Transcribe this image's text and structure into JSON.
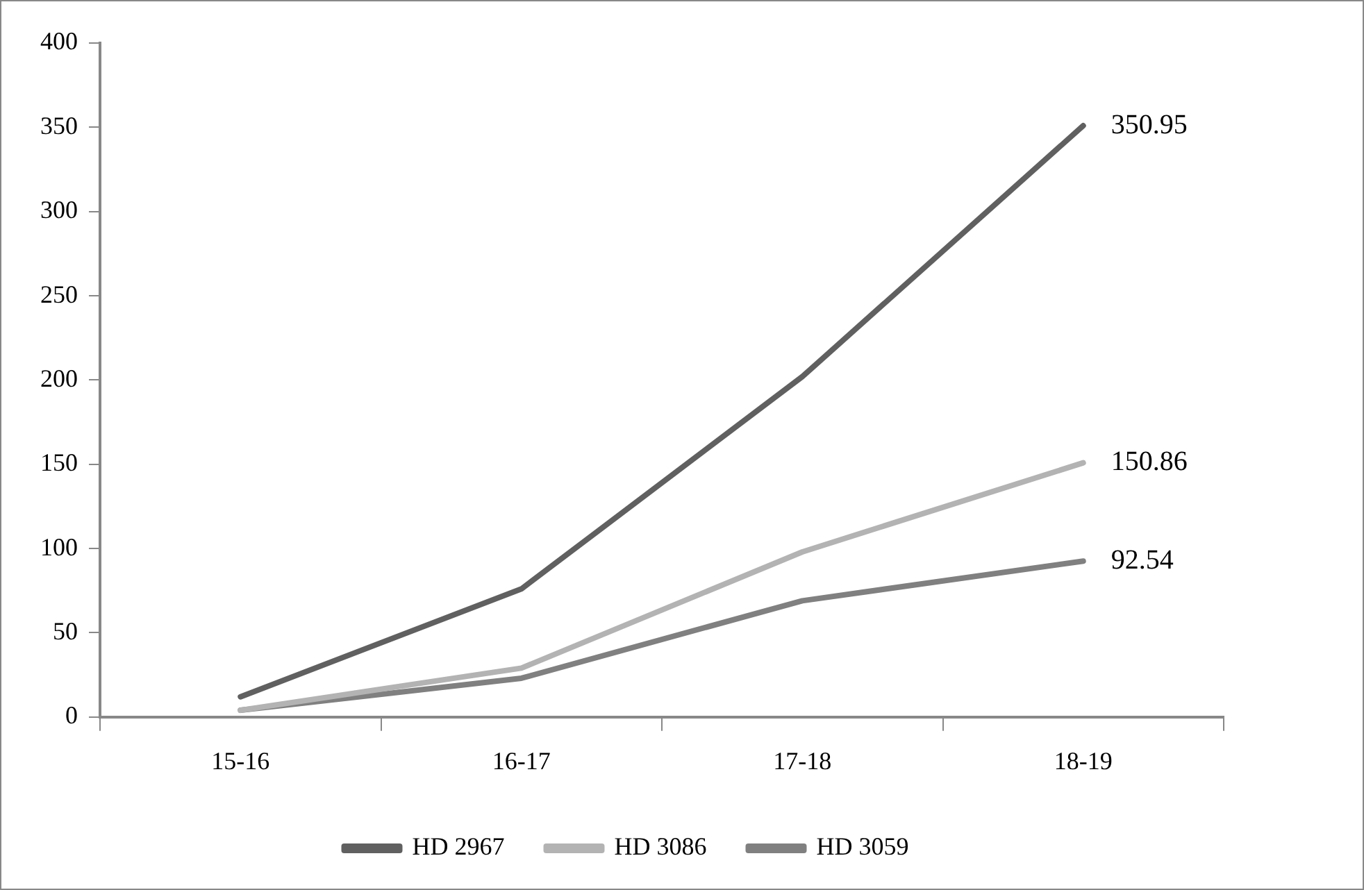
{
  "chart_data": {
    "type": "line",
    "categories": [
      "15-16",
      "16-17",
      "17-18",
      "18-19"
    ],
    "series": [
      {
        "name": "HD 2967",
        "color": "#606060",
        "values": [
          12,
          76,
          202,
          350.95
        ],
        "value_labels": [
          null,
          null,
          null,
          "350.95"
        ]
      },
      {
        "name": "HD 3086",
        "color": "#b3b3b3",
        "values": [
          4,
          29,
          98,
          150.86
        ],
        "value_labels": [
          null,
          null,
          null,
          "150.86"
        ]
      },
      {
        "name": "HD 3059",
        "color": "#808080",
        "values": [
          4,
          23,
          69,
          92.54
        ],
        "value_labels": [
          null,
          null,
          null,
          "92.54"
        ]
      }
    ],
    "ylim": [
      0,
      400
    ],
    "yticks": [
      0,
      50,
      100,
      150,
      200,
      250,
      300,
      350,
      400
    ],
    "grid": false,
    "legend": "bottom",
    "marker": "none",
    "line_style": "solid"
  }
}
